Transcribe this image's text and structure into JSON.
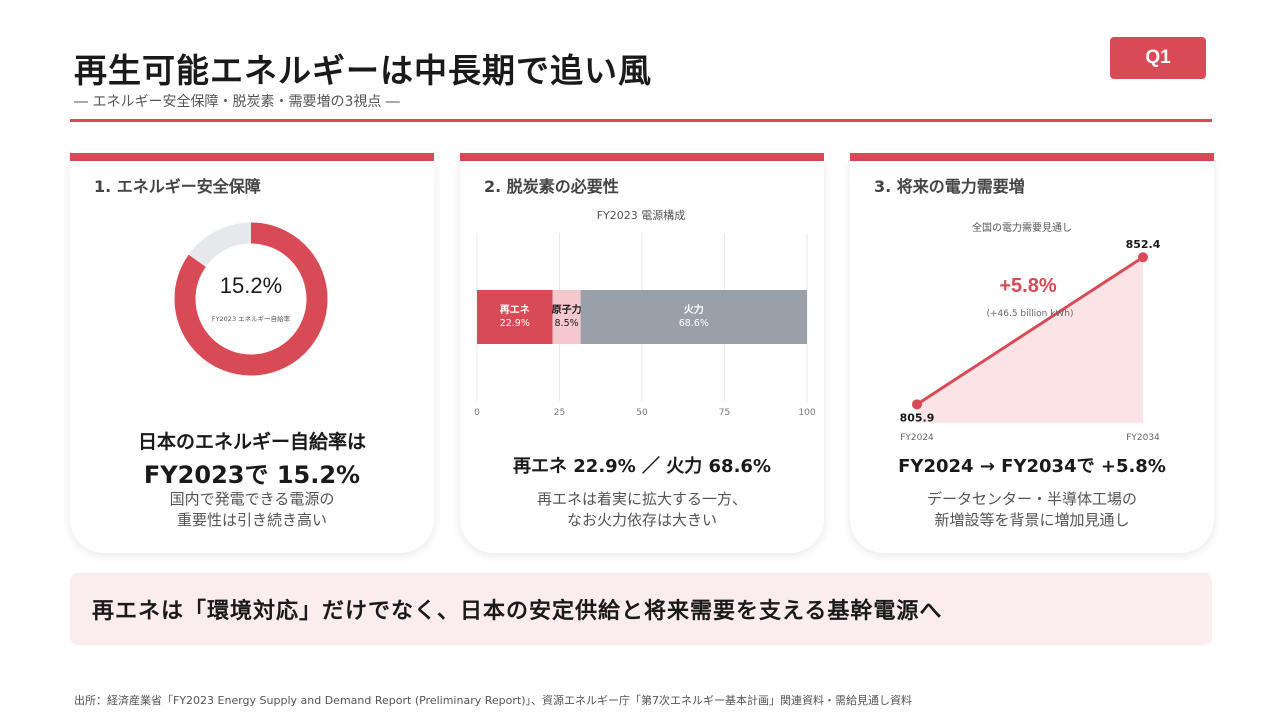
{
  "header": {
    "title": "再生可能エネルギーは中長期で追い風",
    "subtitle": "― エネルギー安全保障・脱炭素・需要増の3視点 ―",
    "badge": "Q1"
  },
  "colors": {
    "accent": "#d94a57",
    "pink_light": "#f5c8cd",
    "gray": "#9aa0aa",
    "track": "#e6e8ec"
  },
  "cards": [
    {
      "title": "1. エネルギー安全保障",
      "donut_value_label": "15.2%",
      "donut_caption": "FY2023 エネルギー自給率",
      "headline_1": "日本のエネルギー自給率は",
      "headline_2": "FY2023で 15.2%",
      "note_1": "国内で発電できる電源の",
      "note_2": "重要性は引き続き高い"
    },
    {
      "title": "2. 脱炭素の必要性",
      "headline": "再エネ 22.9% ／ 火力 68.6%",
      "note_1": "再エネは着実に拡大する一方、",
      "note_2": "なお火力依存は大きい"
    },
    {
      "title": "3. 将来の電力需要増",
      "headline": "FY2024 → FY2034で +5.8%",
      "note_1": "データセンター・半導体工場の",
      "note_2": "新増設等を背景に増加見通し"
    }
  ],
  "chart_data": [
    {
      "type": "pie",
      "labels": [
        "FY2023 エネルギー自給率",
        ""
      ],
      "values": [
        15.2,
        84.8
      ],
      "center_label": "15.2%"
    },
    {
      "type": "bar",
      "orientation": "horizontal-stacked",
      "title": "FY2023 電源構成",
      "series": [
        {
          "name": "再エネ",
          "values": [
            22.9
          ],
          "label": "22.9%"
        },
        {
          "name": "原子力",
          "values": [
            8.5
          ],
          "label": "8.5%"
        },
        {
          "name": "火力",
          "values": [
            68.6
          ],
          "label": "68.6%"
        }
      ],
      "xlim": [
        0,
        100
      ],
      "xticks": [
        "0",
        "25",
        "50",
        "75",
        "100"
      ],
      "grid": true
    },
    {
      "type": "line",
      "title": "全国の電力需要見通し",
      "x": [
        "FY2024",
        "FY2034"
      ],
      "values": [
        805.9,
        852.4
      ],
      "point_labels": [
        "805.9",
        "852.4"
      ],
      "annotation": "+5.8%",
      "annotation_sub": "(+46.5 billion kWh)"
    }
  ],
  "banner": "再エネは「環境対応」だけでなく、日本の安定供給と将来需要を支える基幹電源へ",
  "source": "出所：経済産業省「FY2023 Energy Supply and Demand Report (Preliminary Report)」、資源エネルギー庁「第7次エネルギー基本計画」関連資料・需給見通し資料"
}
